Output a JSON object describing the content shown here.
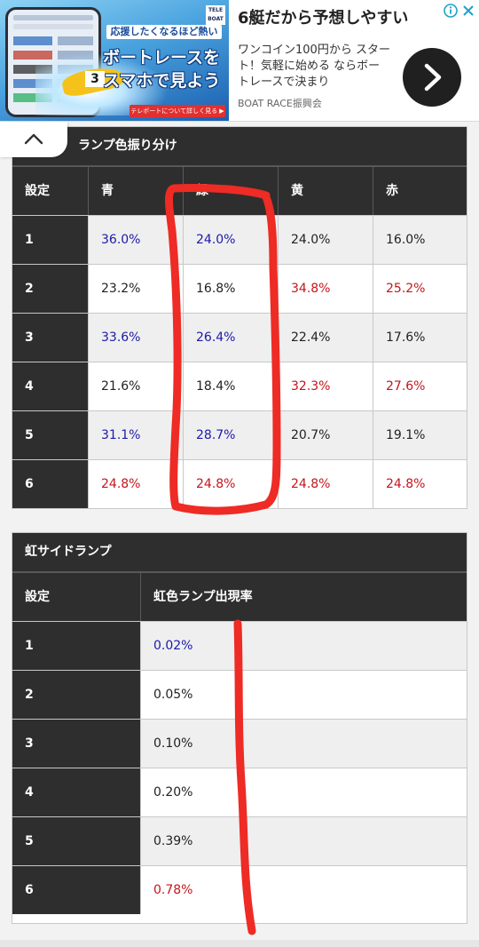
{
  "ad": {
    "headline": "6艇だから予想しやすい",
    "body": "ワンコイン100円から スタート！気軽に始める ならボートレースで決まり",
    "sponsor": "BOAT RACE振興会",
    "image_tag": "応援したくなるほど熱い",
    "image_line1": "ボートレースを",
    "image_line2": "スマホで見よう",
    "image_cta": "テレボートについて詳しく見る ▶",
    "teleboat": "TELE BOAT",
    "boat_number": "3"
  },
  "lamp_table": {
    "title": "ランプ色振り分け",
    "headers": [
      "設定",
      "青",
      "緑",
      "黄",
      "赤"
    ],
    "rows": [
      {
        "setting": "1",
        "cells": [
          {
            "v": "36.0%",
            "c": "blue"
          },
          {
            "v": "24.0%",
            "c": "blue"
          },
          {
            "v": "24.0%",
            "c": "black"
          },
          {
            "v": "16.0%",
            "c": "black"
          }
        ]
      },
      {
        "setting": "2",
        "cells": [
          {
            "v": "23.2%",
            "c": "black"
          },
          {
            "v": "16.8%",
            "c": "black"
          },
          {
            "v": "34.8%",
            "c": "red"
          },
          {
            "v": "25.2%",
            "c": "red"
          }
        ]
      },
      {
        "setting": "3",
        "cells": [
          {
            "v": "33.6%",
            "c": "blue"
          },
          {
            "v": "26.4%",
            "c": "blue"
          },
          {
            "v": "22.4%",
            "c": "black"
          },
          {
            "v": "17.6%",
            "c": "black"
          }
        ]
      },
      {
        "setting": "4",
        "cells": [
          {
            "v": "21.6%",
            "c": "black"
          },
          {
            "v": "18.4%",
            "c": "black"
          },
          {
            "v": "32.3%",
            "c": "red"
          },
          {
            "v": "27.6%",
            "c": "red"
          }
        ]
      },
      {
        "setting": "5",
        "cells": [
          {
            "v": "31.1%",
            "c": "blue"
          },
          {
            "v": "28.7%",
            "c": "blue"
          },
          {
            "v": "20.7%",
            "c": "black"
          },
          {
            "v": "19.1%",
            "c": "black"
          }
        ]
      },
      {
        "setting": "6",
        "cells": [
          {
            "v": "24.8%",
            "c": "red"
          },
          {
            "v": "24.8%",
            "c": "red"
          },
          {
            "v": "24.8%",
            "c": "red"
          },
          {
            "v": "24.8%",
            "c": "red"
          }
        ]
      }
    ]
  },
  "rainbow_table": {
    "title": "虹サイドランプ",
    "headers": [
      "設定",
      "虹色ランプ出現率"
    ],
    "rows": [
      {
        "setting": "1",
        "v": "0.02%",
        "c": "blue"
      },
      {
        "setting": "2",
        "v": "0.05%",
        "c": "black"
      },
      {
        "setting": "3",
        "v": "0.10%",
        "c": "black"
      },
      {
        "setting": "4",
        "v": "0.20%",
        "c": "black"
      },
      {
        "setting": "5",
        "v": "0.39%",
        "c": "black"
      },
      {
        "setting": "6",
        "v": "0.78%",
        "c": "red"
      }
    ]
  },
  "colors": {
    "header_bg": "#2e2e2e",
    "blue_text": "#1c1aa8",
    "red_text": "#c4161c",
    "annotation_red": "#ee2b24"
  }
}
